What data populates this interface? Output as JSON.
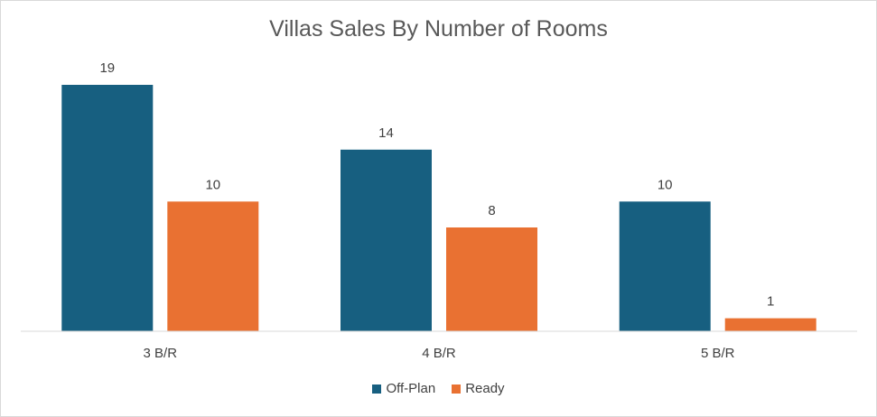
{
  "chart_data": {
    "type": "bar",
    "title": "Villas Sales By Number of Rooms",
    "categories": [
      "3 B/R",
      "4 B/R",
      "5 B/R"
    ],
    "series": [
      {
        "name": "Off-Plan",
        "values": [
          19,
          14,
          10
        ],
        "color": "#175f80"
      },
      {
        "name": "Ready",
        "values": [
          10,
          8,
          1
        ],
        "color": "#e97132"
      }
    ],
    "ylim": [
      0,
      19
    ],
    "grid": false,
    "legend_position": "bottom",
    "data_labels": true
  }
}
